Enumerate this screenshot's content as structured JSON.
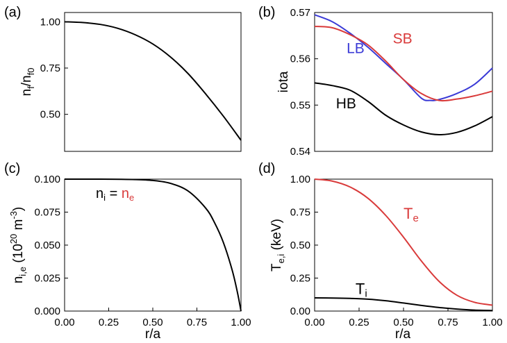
{
  "figure": {
    "panels": [
      "(a)",
      "(b)",
      "(c)",
      "(d)"
    ],
    "x_label": "r/a"
  },
  "chart_data": [
    {
      "id": "a",
      "type": "line",
      "panel_label": "(a)",
      "ylabel": "n_f/n_f0",
      "ylabel_main": "n",
      "ylabel_sub1": "f",
      "ylabel_mid": "/n",
      "ylabel_sub2": "f0",
      "xlim": [
        0,
        1
      ],
      "ylim": [
        0.3,
        1.05
      ],
      "yticks": [
        0.5,
        0.75,
        1.0
      ],
      "ytick_labels": [
        "0.50",
        "0.75",
        "1.00"
      ],
      "xticks": [],
      "xtick_labels": [],
      "series": [
        {
          "name": "n_f",
          "color": "#000000",
          "x": [
            0,
            0.1,
            0.2,
            0.3,
            0.4,
            0.5,
            0.6,
            0.7,
            0.8,
            0.9,
            1.0
          ],
          "y": [
            1.0,
            0.996,
            0.986,
            0.965,
            0.93,
            0.88,
            0.81,
            0.72,
            0.61,
            0.49,
            0.36
          ]
        }
      ]
    },
    {
      "id": "b",
      "type": "line",
      "panel_label": "(b)",
      "ylabel": "iota",
      "xlim": [
        0,
        1
      ],
      "ylim": [
        0.54,
        0.57
      ],
      "yticks": [
        0.54,
        0.55,
        0.56,
        0.57
      ],
      "ytick_labels": [
        "0.54",
        "0.55",
        "0.56",
        "0.57"
      ],
      "xticks": [],
      "xtick_labels": [],
      "series": [
        {
          "name": "LB",
          "color": "#3a3ad6",
          "x": [
            0,
            0.1,
            0.2,
            0.3,
            0.4,
            0.5,
            0.6,
            0.65,
            0.7,
            0.8,
            0.9,
            1.0
          ],
          "y": [
            0.5695,
            0.568,
            0.5655,
            0.5625,
            0.559,
            0.5555,
            0.5515,
            0.551,
            0.5512,
            0.5525,
            0.5545,
            0.558
          ]
        },
        {
          "name": "SB",
          "color": "#d93a3a",
          "x": [
            0,
            0.1,
            0.2,
            0.3,
            0.4,
            0.5,
            0.6,
            0.7,
            0.8,
            0.9,
            1.0
          ],
          "y": [
            0.567,
            0.5667,
            0.5652,
            0.563,
            0.5595,
            0.5555,
            0.5525,
            0.551,
            0.5513,
            0.552,
            0.553
          ]
        },
        {
          "name": "HB",
          "color": "#000000",
          "x": [
            0,
            0.1,
            0.2,
            0.3,
            0.4,
            0.5,
            0.6,
            0.7,
            0.8,
            0.9,
            1.0
          ],
          "y": [
            0.5548,
            0.5542,
            0.5532,
            0.5508,
            0.5478,
            0.5457,
            0.5442,
            0.5436,
            0.5441,
            0.5455,
            0.5475
          ]
        }
      ],
      "annotations": [
        {
          "text": "LB",
          "color": "#3a3ad6",
          "x": 0.18,
          "y": 0.5612
        },
        {
          "text": "SB",
          "color": "#d93a3a",
          "x": 0.44,
          "y": 0.5633
        },
        {
          "text": "HB",
          "color": "#000000",
          "x": 0.12,
          "y": 0.5493
        }
      ]
    },
    {
      "id": "c",
      "type": "line",
      "panel_label": "(c)",
      "ylabel": "n_i,e (10^20 m^-3)",
      "ylabel_main": "n",
      "ylabel_sub": "i,e",
      "ylabel_pre": " (10",
      "ylabel_sup1": "20",
      "ylabel_unit": " m",
      "ylabel_sup2": "-3",
      "ylabel_post": ")",
      "xlim": [
        0,
        1
      ],
      "ylim": [
        0,
        0.1
      ],
      "yticks": [
        0,
        0.025,
        0.05,
        0.075,
        0.1
      ],
      "ytick_labels": [
        "0.000",
        "0.025",
        "0.050",
        "0.075",
        "0.100"
      ],
      "xticks": [
        0,
        0.25,
        0.5,
        0.75,
        1.0
      ],
      "xtick_labels": [
        "0.00",
        "0.25",
        "0.50",
        "0.75",
        "1.00"
      ],
      "xlabel": "r/a",
      "series": [
        {
          "name": "n_i = n_e",
          "color": "#000000",
          "x": [
            0,
            0.2,
            0.4,
            0.5,
            0.6,
            0.7,
            0.8,
            0.85,
            0.9,
            0.95,
            0.98,
            1.0
          ],
          "y": [
            0.1,
            0.1,
            0.0997,
            0.099,
            0.0968,
            0.091,
            0.078,
            0.067,
            0.052,
            0.031,
            0.014,
            0.0
          ]
        }
      ],
      "annotation": {
        "ni": "n",
        "ni_sub": "i",
        "eq": " = ",
        "ne": "n",
        "ne_sub": "e",
        "ne_color": "#d93a3a"
      }
    },
    {
      "id": "d",
      "type": "line",
      "panel_label": "(d)",
      "ylabel": "T_e,i (keV)",
      "ylabel_main": "T",
      "ylabel_sub": "e,i",
      "ylabel_post": " (keV)",
      "xlim": [
        0,
        1
      ],
      "ylim": [
        0,
        1
      ],
      "yticks": [
        0,
        0.25,
        0.5,
        0.75,
        1.0
      ],
      "ytick_labels": [
        "0.00",
        "0.25",
        "0.50",
        "0.75",
        "1.00"
      ],
      "xticks": [
        0,
        0.25,
        0.5,
        0.75,
        1.0
      ],
      "xtick_labels": [
        "0.00",
        "0.25",
        "0.50",
        "0.75",
        "1.00"
      ],
      "xlabel": "r/a",
      "series": [
        {
          "name": "Te",
          "color": "#d93a3a",
          "x": [
            0,
            0.1,
            0.2,
            0.3,
            0.4,
            0.5,
            0.6,
            0.7,
            0.8,
            0.9,
            1.0
          ],
          "y": [
            1.0,
            0.985,
            0.94,
            0.855,
            0.725,
            0.56,
            0.38,
            0.225,
            0.12,
            0.066,
            0.045
          ]
        },
        {
          "name": "Ti",
          "color": "#000000",
          "x": [
            0,
            0.1,
            0.2,
            0.3,
            0.4,
            0.5,
            0.6,
            0.7,
            0.8,
            0.9,
            1.0
          ],
          "y": [
            0.1,
            0.099,
            0.096,
            0.09,
            0.078,
            0.061,
            0.043,
            0.027,
            0.015,
            0.007,
            0.004
          ]
        }
      ],
      "annotations": [
        {
          "main": "T",
          "sub": "e",
          "color": "#d93a3a",
          "x": 0.5,
          "y": 0.7
        },
        {
          "main": "T",
          "sub": "i",
          "color": "#000000",
          "x": 0.23,
          "y": 0.13
        }
      ]
    }
  ]
}
